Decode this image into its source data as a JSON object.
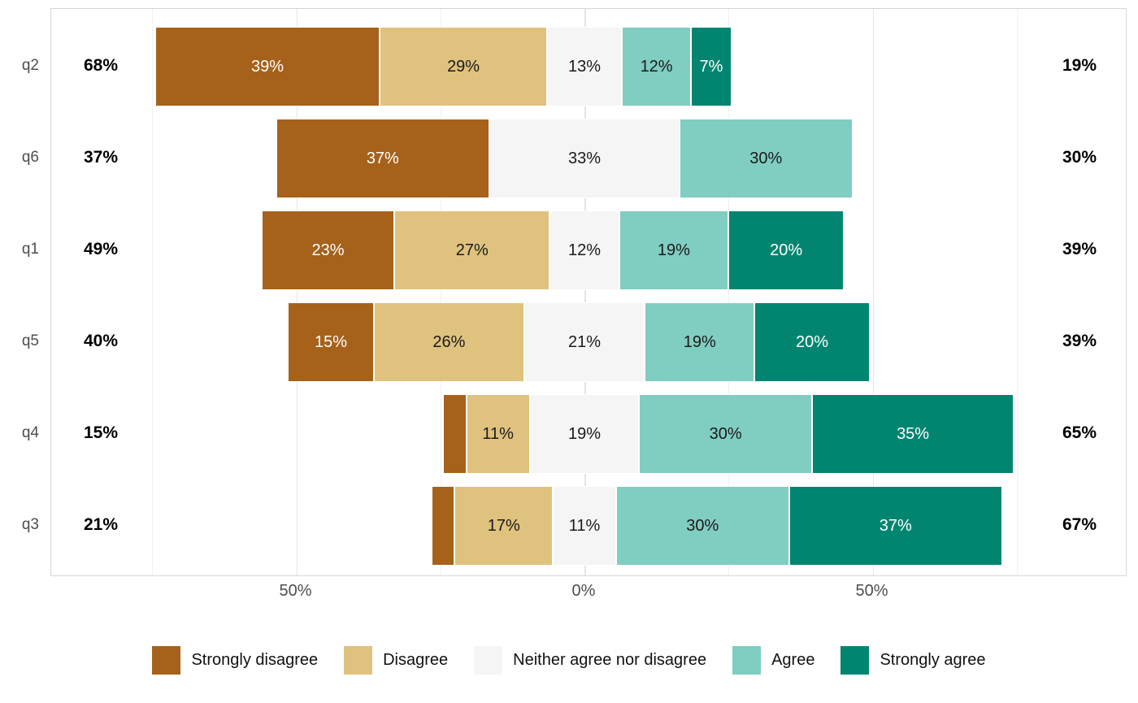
{
  "chart_data": {
    "type": "bar",
    "variant": "diverging-stacked-likert",
    "title": "",
    "categories": [
      "Strongly disagree",
      "Disagree",
      "Neither agree nor disagree",
      "Agree",
      "Strongly agree"
    ],
    "colors": [
      "#a6611a",
      "#dfc27d",
      "#f5f5f5",
      "#80cdc1",
      "#018571"
    ],
    "label_text_colors": [
      "#ffffff",
      "#1a1a1a",
      "#1a1a1a",
      "#1a1a1a",
      "#ffffff"
    ],
    "rows": [
      {
        "label": "q2",
        "left_total": "68%",
        "right_total": "19%",
        "values": [
          39,
          29,
          13,
          12,
          7
        ],
        "segment_labels": [
          "39%",
          "29%",
          "13%",
          "12%",
          "7%"
        ]
      },
      {
        "label": "q6",
        "left_total": "37%",
        "right_total": "30%",
        "values": [
          37,
          0,
          33,
          30,
          0
        ],
        "segment_labels": [
          "37%",
          "",
          "33%",
          "30%",
          ""
        ]
      },
      {
        "label": "q1",
        "left_total": "49%",
        "right_total": "39%",
        "values": [
          23,
          27,
          12,
          19,
          20
        ],
        "segment_labels": [
          "23%",
          "27%",
          "12%",
          "19%",
          "20%"
        ]
      },
      {
        "label": "q5",
        "left_total": "40%",
        "right_total": "39%",
        "values": [
          15,
          26,
          21,
          19,
          20
        ],
        "segment_labels": [
          "15%",
          "26%",
          "21%",
          "19%",
          "20%"
        ]
      },
      {
        "label": "q4",
        "left_total": "15%",
        "right_total": "65%",
        "values": [
          4,
          11,
          19,
          30,
          35
        ],
        "segment_labels": [
          "",
          "11%",
          "19%",
          "30%",
          "35%"
        ]
      },
      {
        "label": "q3",
        "left_total": "21%",
        "right_total": "67%",
        "values": [
          4,
          17,
          11,
          30,
          37
        ],
        "segment_labels": [
          "",
          "17%",
          "11%",
          "30%",
          "37%"
        ]
      }
    ],
    "x_axis": {
      "tick_values": [
        -50,
        0,
        50
      ],
      "tick_labels": [
        "50%",
        "0%",
        "50%"
      ],
      "minor_tick_values": [
        -75,
        -25,
        25,
        75
      ],
      "range": [
        -93,
        93
      ]
    },
    "legend": {
      "position": "bottom",
      "entries": [
        "Strongly disagree",
        "Disagree",
        "Neither agree nor disagree",
        "Agree",
        "Strongly agree"
      ]
    },
    "notes": "Neutral category centered on 0; left bold totals = disagree side sum, right bold totals = agree side sum"
  }
}
